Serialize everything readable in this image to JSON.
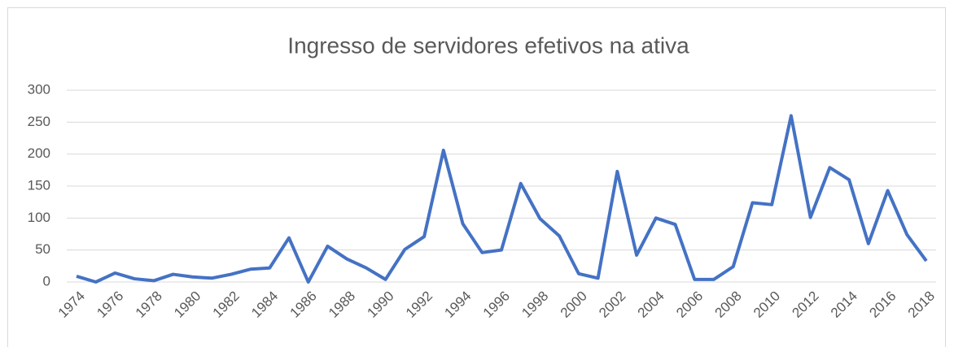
{
  "chart_data": {
    "type": "line",
    "title": "Ingresso de servidores efetivos na ativa",
    "x": [
      1974,
      1975,
      1976,
      1977,
      1978,
      1979,
      1980,
      1981,
      1982,
      1983,
      1984,
      1985,
      1986,
      1987,
      1988,
      1989,
      1990,
      1991,
      1992,
      1993,
      1994,
      1995,
      1996,
      1997,
      1998,
      1999,
      2000,
      2001,
      2002,
      2003,
      2004,
      2005,
      2006,
      2007,
      2008,
      2009,
      2010,
      2011,
      2012,
      2013,
      2014,
      2015,
      2016,
      2017,
      2018
    ],
    "series": [
      {
        "name": "Ingresso",
        "color": "#4472c4",
        "values": [
          9,
          0,
          14,
          5,
          2,
          12,
          8,
          6,
          12,
          20,
          22,
          69,
          0,
          56,
          36,
          22,
          4,
          51,
          71,
          206,
          91,
          46,
          50,
          154,
          99,
          72,
          13,
          6,
          173,
          42,
          100,
          90,
          4,
          4,
          24,
          124,
          121,
          260,
          101,
          179,
          160,
          60,
          143,
          74,
          33
        ]
      }
    ],
    "xlim": [
      1974,
      2018
    ],
    "xticks": [
      1974,
      1976,
      1978,
      1980,
      1982,
      1984,
      1986,
      1988,
      1990,
      1992,
      1994,
      1996,
      1998,
      2000,
      2002,
      2004,
      2006,
      2008,
      2010,
      2012,
      2014,
      2016,
      2018
    ],
    "ylim": [
      0,
      300
    ],
    "yticks": [
      0,
      50,
      100,
      150,
      200,
      250,
      300
    ],
    "grid": true
  }
}
